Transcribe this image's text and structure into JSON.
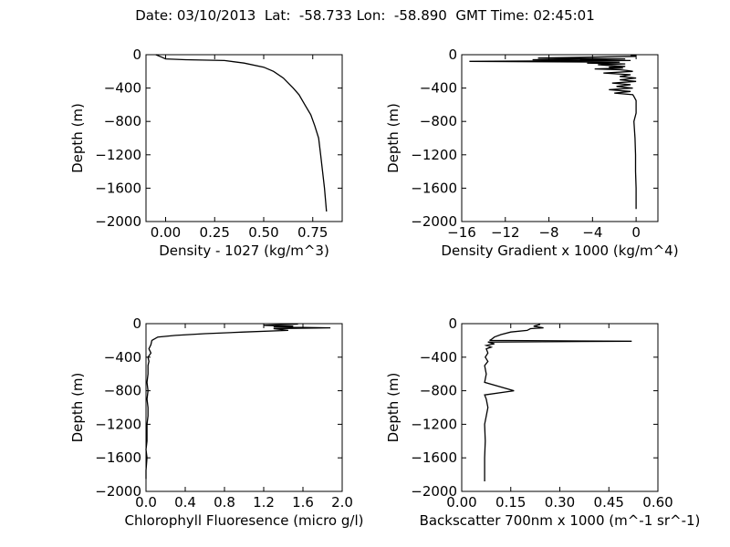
{
  "suptitle": "Date: 03/10/2013  Lat:  -58.733 Lon:  -58.890  GMT Time: 02:45:01",
  "chart_data": [
    {
      "type": "line",
      "xlabel": "Density - 1027 (kg/m^3)",
      "ylabel": "Depth (m)",
      "xlim": [
        -0.1,
        0.9
      ],
      "ylim": [
        -2000,
        0
      ],
      "xticks": [
        0.0,
        0.25,
        0.5,
        0.75
      ],
      "xtick_labels": [
        "0.00",
        "0.25",
        "0.50",
        "0.75"
      ],
      "yticks": [
        0,
        -400,
        -800,
        -1200,
        -1600,
        -2000
      ],
      "ytick_labels": [
        "0",
        "−400",
        "−800",
        "−1200",
        "−1600",
        "−2000"
      ],
      "series": [
        {
          "color": "#000000",
          "x": [
            -0.05,
            -0.02,
            0.0,
            0.1,
            0.3,
            0.4,
            0.5,
            0.55,
            0.6,
            0.65,
            0.68,
            0.71,
            0.74,
            0.76,
            0.78,
            0.79,
            0.8,
            0.81,
            0.82
          ],
          "y": [
            0,
            -30,
            -50,
            -60,
            -70,
            -100,
            -150,
            -200,
            -280,
            -400,
            -480,
            -600,
            -720,
            -850,
            -1000,
            -1200,
            -1400,
            -1600,
            -1880
          ]
        }
      ]
    },
    {
      "type": "line",
      "xlabel": "Density Gradient x 1000 (kg/m^4)",
      "ylabel": "Depth (m)",
      "xlim": [
        -16,
        2
      ],
      "ylim": [
        -2000,
        0
      ],
      "xticks": [
        -16,
        -12,
        -8,
        -4,
        0
      ],
      "xtick_labels": [
        "−16",
        "−12",
        "−8",
        "−4",
        "0"
      ],
      "yticks": [
        0,
        -400,
        -800,
        -1200,
        -1600,
        -2000
      ],
      "ytick_labels": [
        "0",
        "−400",
        "−800",
        "−1200",
        "−1600",
        "−2000"
      ],
      "series": [
        {
          "color": "#000000",
          "x": [
            0.0,
            -0.5,
            0.0,
            -9.0,
            -1.0,
            -9.5,
            -0.5,
            -15.3,
            -1.5,
            -4.5,
            -1.0,
            -3.5,
            -2.5,
            -1.0,
            -2.5,
            -1.2,
            -3.8,
            -1.5,
            -0.8,
            -0.3,
            -3.0,
            -0.5,
            -1.5,
            0.0,
            -1.5,
            0.0,
            -2.2,
            -0.5,
            -1.8,
            -0.3,
            -2.5,
            -0.5,
            -2.0,
            -0.3,
            -0.2,
            0.0,
            0.0,
            -0.2,
            -0.1,
            -0.05,
            -0.05,
            0.0,
            0.0
          ],
          "y": [
            -5,
            -10,
            -20,
            -40,
            -50,
            -60,
            -70,
            -80,
            -90,
            -100,
            -110,
            -120,
            -130,
            -140,
            -150,
            -160,
            -170,
            -180,
            -190,
            -200,
            -220,
            -240,
            -260,
            -280,
            -300,
            -320,
            -340,
            -360,
            -380,
            -400,
            -420,
            -440,
            -460,
            -480,
            -500,
            -550,
            -700,
            -800,
            -1000,
            -1200,
            -1400,
            -1600,
            -1850
          ]
        }
      ]
    },
    {
      "type": "line",
      "xlabel": "Chlorophyll Fluoresence (micro g/l)",
      "ylabel": "Depth (m)",
      "xlim": [
        0.0,
        2.0
      ],
      "ylim": [
        -2000,
        0
      ],
      "xticks": [
        0.0,
        0.4,
        0.8,
        1.2,
        1.6,
        2.0
      ],
      "xtick_labels": [
        "0.0",
        "0.4",
        "0.8",
        "1.2",
        "1.6",
        "2.0"
      ],
      "yticks": [
        0,
        -400,
        -800,
        -1200,
        -1600,
        -2000
      ],
      "ytick_labels": [
        "0",
        "−400",
        "−800",
        "−1200",
        "−1600",
        "−2000"
      ],
      "series": [
        {
          "color": "#000000",
          "x": [
            1.55,
            1.2,
            1.5,
            1.3,
            1.88,
            1.3,
            1.45,
            1.0,
            0.6,
            0.3,
            0.12,
            0.06,
            0.05,
            0.03,
            0.05,
            0.02,
            0.03,
            0.02,
            0.02,
            0.01,
            0.02,
            0.01,
            0.02,
            0.02,
            0.01,
            0.01,
            0.01,
            0.0,
            0.01,
            0.0,
            0.0
          ],
          "y": [
            -5,
            -20,
            -30,
            -40,
            -50,
            -60,
            -80,
            -100,
            -120,
            -140,
            -160,
            -200,
            -250,
            -300,
            -350,
            -400,
            -450,
            -500,
            -600,
            -700,
            -800,
            -900,
            -1000,
            -1100,
            -1200,
            -1300,
            -1400,
            -1500,
            -1600,
            -1750,
            -1850
          ]
        }
      ]
    },
    {
      "type": "line",
      "xlabel": "Backscatter 700nm x 1000 (m^-1 sr^-1)",
      "ylabel": "Depth (m)",
      "xlim": [
        0.0,
        0.6
      ],
      "ylim": [
        -2000,
        0
      ],
      "xticks": [
        0.0,
        0.15,
        0.3,
        0.45,
        0.6
      ],
      "xtick_labels": [
        "0.00",
        "0.15",
        "0.30",
        "0.45",
        "0.60"
      ],
      "yticks": [
        0,
        -400,
        -800,
        -1200,
        -1600,
        -2000
      ],
      "ytick_labels": [
        "0",
        "−400",
        "−800",
        "−1200",
        "−1600",
        "−2000"
      ],
      "series": [
        {
          "color": "#000000",
          "x": [
            0.24,
            0.22,
            0.25,
            0.21,
            0.2,
            0.15,
            0.12,
            0.1,
            0.09,
            0.085,
            0.52,
            0.08,
            0.1,
            0.075,
            0.09,
            0.075,
            0.08,
            0.072,
            0.08,
            0.07,
            0.075,
            0.07,
            0.16,
            0.07,
            0.075,
            0.08,
            0.075,
            0.07,
            0.072,
            0.07,
            0.07
          ],
          "y": [
            -10,
            -30,
            -50,
            -60,
            -80,
            -100,
            -130,
            -160,
            -190,
            -200,
            -210,
            -220,
            -240,
            -260,
            -280,
            -300,
            -350,
            -400,
            -450,
            -500,
            -600,
            -700,
            -800,
            -850,
            -900,
            -1000,
            -1100,
            -1200,
            -1400,
            -1600,
            -1880
          ]
        }
      ]
    }
  ]
}
